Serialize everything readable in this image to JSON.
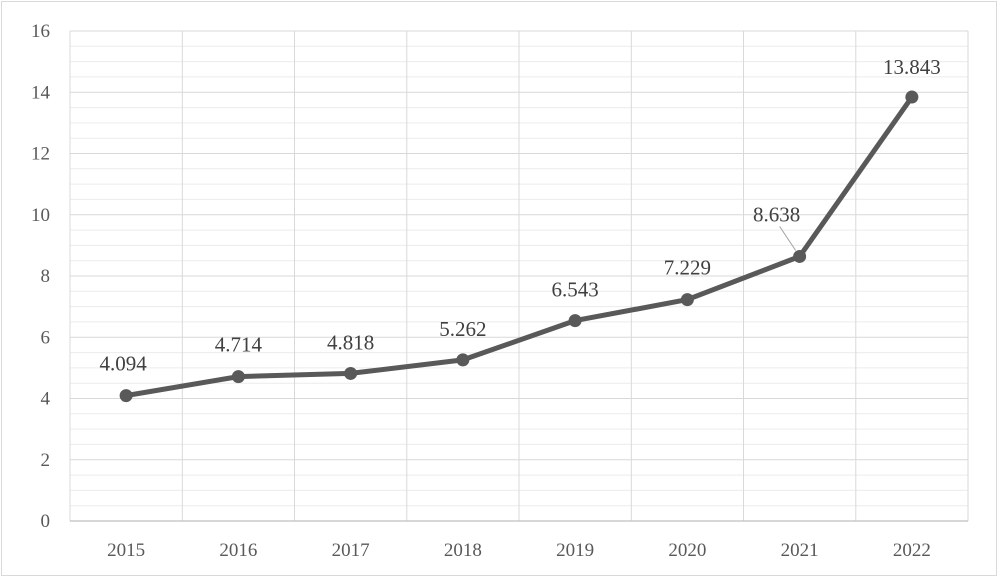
{
  "chart_data": {
    "type": "line",
    "title": "",
    "xlabel": "",
    "ylabel": "",
    "categories": [
      "2015",
      "2016",
      "2017",
      "2018",
      "2019",
      "2020",
      "2021",
      "2022"
    ],
    "series": [
      {
        "values": [
          4.094,
          4.714,
          4.818,
          5.262,
          6.543,
          7.229,
          8.638,
          13.843
        ]
      }
    ],
    "data_labels": [
      "4.094",
      "4.714",
      "4.818",
      "5.262",
      "6.543",
      "7.229",
      "8.638",
      "13.843"
    ],
    "ylim": [
      0,
      16
    ],
    "yticks": [
      "0",
      "2",
      "4",
      "6",
      "8",
      "10",
      "12",
      "14",
      "16"
    ],
    "grid": true,
    "legend": "none",
    "colors": {
      "line": "#595959",
      "grid": "#d9d9d9",
      "axis": "#bfbfbf"
    }
  }
}
